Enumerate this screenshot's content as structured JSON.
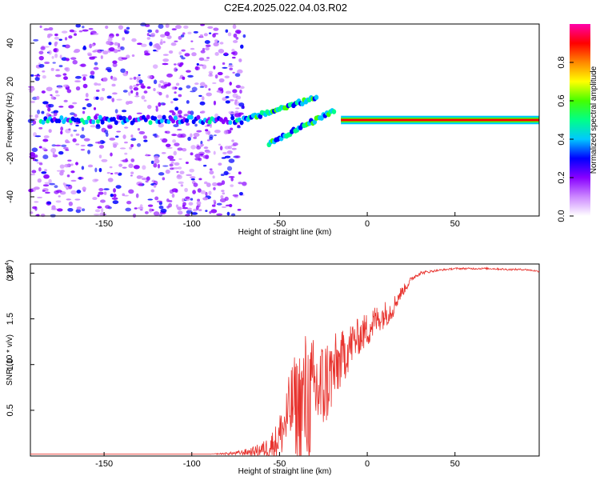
{
  "page_title": "C2E4.2025.022.04.03.R02",
  "chart_data": [
    {
      "type": "heatmap",
      "xlabel": "Height of straight line (km)",
      "ylabel": "Frequency (Hz)",
      "xlim": [
        -192,
        98
      ],
      "ylim": [
        -50,
        50
      ],
      "x_ticks": [
        "-150",
        "-100",
        "-50",
        "0",
        "50"
      ],
      "x_tick_values": [
        -150,
        -100,
        -50,
        0,
        50
      ],
      "y_ticks": [
        "40",
        "20",
        "0",
        "-20",
        "-40"
      ],
      "y_tick_values": [
        40,
        20,
        0,
        -20,
        -40
      ],
      "colorbar": {
        "label": "Normalized spectral amplitude",
        "range": [
          0,
          1
        ],
        "ticks": [
          "0.0",
          "0.2",
          "0.4",
          "0.6",
          "0.8"
        ],
        "tick_values": [
          0.0,
          0.2,
          0.4,
          0.6,
          0.8
        ],
        "colors": [
          "#ffffff",
          "#cc88ff",
          "#8800ff",
          "#0000ff",
          "#00c8ff",
          "#00ff88",
          "#44ff00",
          "#ffff00",
          "#ff8800",
          "#ff0000",
          "#ff00aa"
        ]
      },
      "features": [
        {
          "name": "noise-band",
          "x_range": [
            -192,
            -70
          ],
          "freq_range": [
            -50,
            50
          ]
        },
        {
          "name": "main-line",
          "x_range": [
            -192,
            98
          ],
          "freq": 0
        },
        {
          "name": "upper-branch",
          "x_range": [
            -70,
            -30
          ],
          "freq_range": [
            0,
            12
          ]
        },
        {
          "name": "lower-branch",
          "x_range": [
            -55,
            -20
          ],
          "freq_range": [
            -12,
            5
          ]
        },
        {
          "name": "strong-line",
          "x_range": [
            -15,
            98
          ],
          "freq": 0,
          "amplitude": 1.0
        }
      ]
    },
    {
      "type": "line",
      "xlabel": "Height of straight line (km)",
      "ylabel": "SNR (10 * v/v)",
      "y_multiplier": "(x10",
      "y_multiplier_exp": "4",
      "y_multiplier_close": ")",
      "xlim": [
        -192,
        98
      ],
      "ylim": [
        0,
        2.1
      ],
      "x_ticks": [
        "-150",
        "-100",
        "-50",
        "0",
        "50"
      ],
      "x_tick_values": [
        -150,
        -100,
        -50,
        0,
        50
      ],
      "y_ticks": [
        "2.0",
        "1.5",
        "1.0",
        "0.5"
      ],
      "y_tick_values": [
        2.0,
        1.5,
        1.0,
        0.5
      ],
      "series": [
        {
          "color": "#e8322d",
          "x": [
            -192,
            -170,
            -150,
            -130,
            -110,
            -90,
            -75,
            -65,
            -58,
            -52,
            -48,
            -45,
            -42,
            -40,
            -38,
            -35,
            -32,
            -30,
            -28,
            -26,
            -24,
            -22,
            -20,
            -18,
            -15,
            -12,
            -10,
            -8,
            -5,
            -2,
            0,
            3,
            6,
            10,
            14,
            18,
            22,
            26,
            30,
            40,
            50,
            60,
            70,
            80,
            90,
            98
          ],
          "y": [
            0.02,
            0.02,
            0.02,
            0.02,
            0.02,
            0.02,
            0.03,
            0.05,
            0.08,
            0.15,
            0.3,
            0.45,
            0.6,
            0.5,
            0.55,
            0.6,
            0.62,
            0.7,
            0.75,
            0.7,
            0.8,
            0.85,
            0.9,
            0.95,
            1.05,
            1.15,
            1.2,
            1.25,
            1.3,
            1.35,
            1.38,
            1.45,
            1.5,
            1.55,
            1.6,
            1.75,
            1.85,
            1.95,
            2.0,
            2.03,
            2.05,
            2.05,
            2.05,
            2.04,
            2.04,
            2.02
          ],
          "noise_amplitude": [
            0.0,
            0.0,
            0.0,
            0.0,
            0.0,
            0.0,
            0.02,
            0.05,
            0.1,
            0.2,
            0.3,
            0.4,
            0.5,
            0.6,
            0.7,
            0.8,
            0.7,
            0.6,
            0.6,
            0.6,
            0.5,
            0.5,
            0.4,
            0.4,
            0.3,
            0.3,
            0.25,
            0.25,
            0.2,
            0.2,
            0.2,
            0.2,
            0.15,
            0.15,
            0.12,
            0.08,
            0.05,
            0.03,
            0.02,
            0.01,
            0.01,
            0.01,
            0.01,
            0.01,
            0.01,
            0.01
          ]
        }
      ]
    }
  ]
}
